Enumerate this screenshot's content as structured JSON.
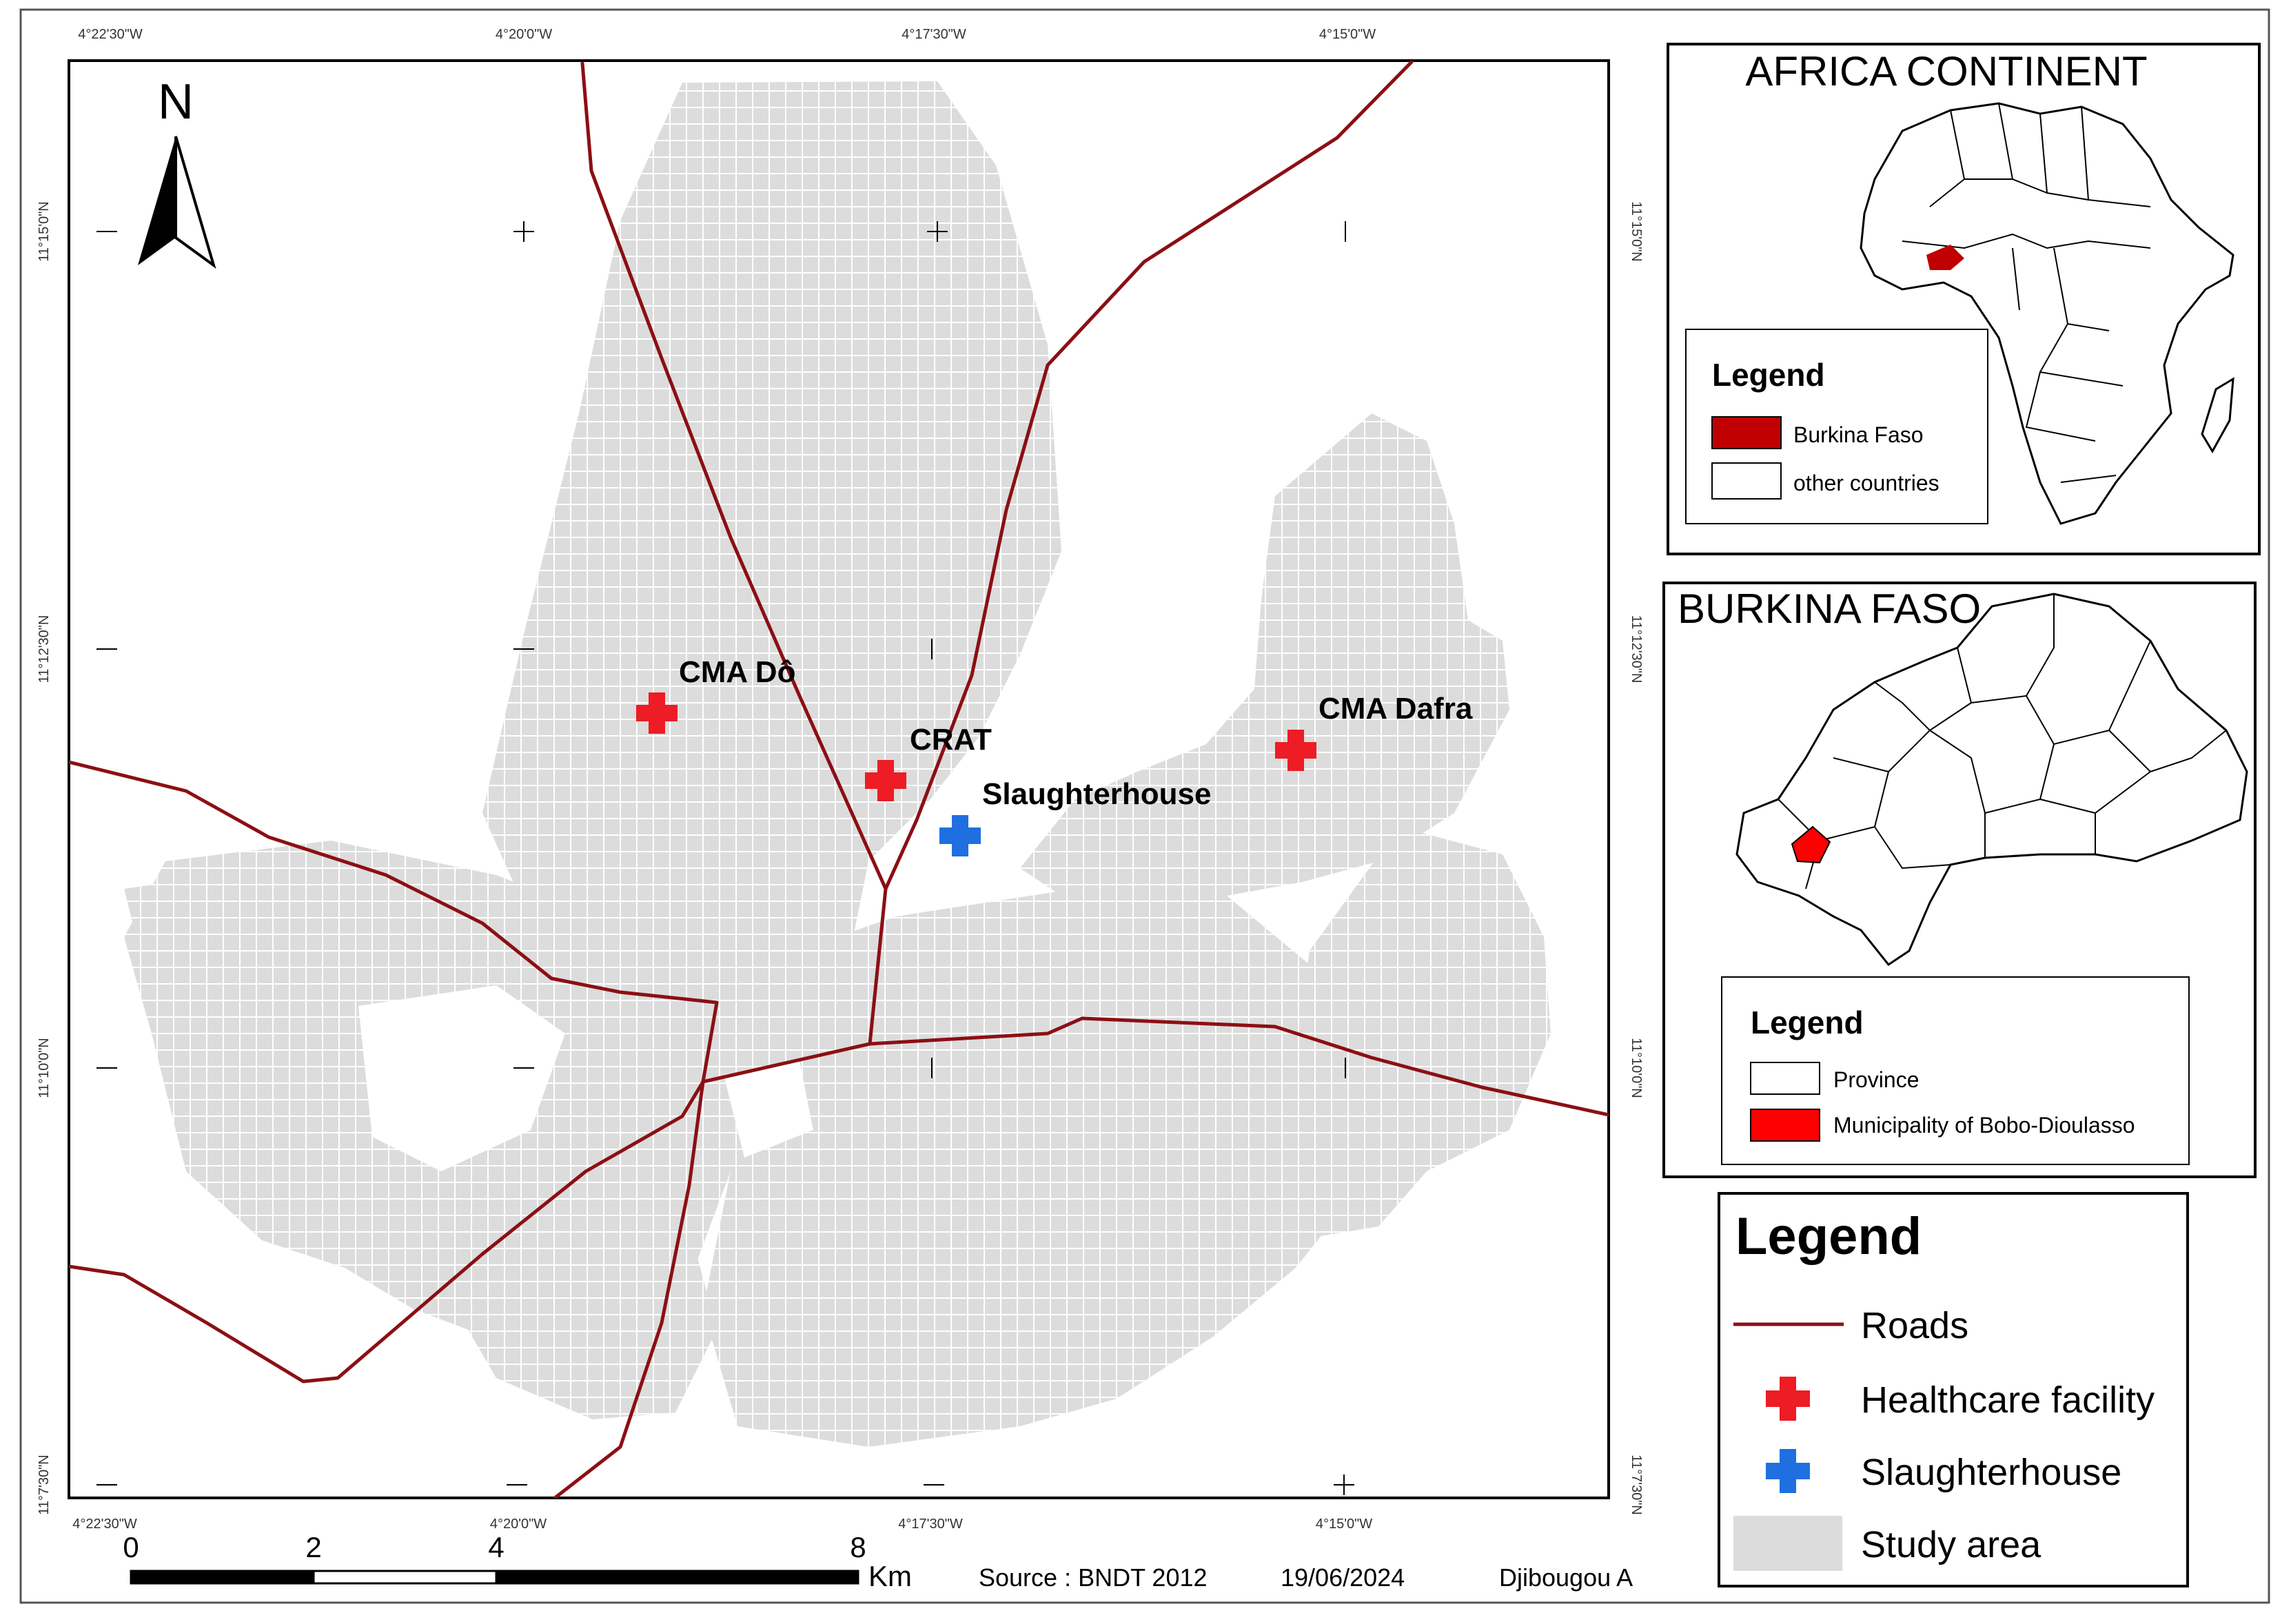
{
  "map": {
    "north_label": "N",
    "graticule": {
      "top": [
        "4°22'30\"W",
        "4°20'0\"W",
        "4°17'30\"W",
        "4°15'0\"W"
      ],
      "bottom": [
        "4°22'30\"W",
        "4°20'0\"W",
        "4°17'30\"W",
        "4°15'0\"W"
      ],
      "left": [
        "11°15'0\"N",
        "11°12'30\"N",
        "11°10'0\"N",
        "11°7'30\"N"
      ],
      "right": [
        "11°15'0\"N",
        "11°12'30\"N",
        "11°10'0\"N",
        "11°7'30\"N"
      ]
    },
    "places": {
      "cma_do": "CMA Dô",
      "crat": "CRAT",
      "slaughterhouse": "Slaughterhouse",
      "cma_dafra": "CMA Dafra"
    },
    "colors": {
      "roads": "#8b0f14",
      "healthcare": "#ee1c24",
      "slaughterhouse": "#1f6fe0",
      "study_area": "#dcdcdc",
      "burkina": "#c00000",
      "municipality": "#ff0000"
    }
  },
  "scale_bar": {
    "ticks": [
      "0",
      "2",
      "4",
      "8"
    ],
    "unit": "Km"
  },
  "footer": {
    "source": "Source : BNDT 2012",
    "date": "19/06/2024",
    "author": "Djibougou A"
  },
  "africa_panel": {
    "title": "AFRICA CONTINENT",
    "legend_title": "Legend",
    "items": [
      "Burkina Faso",
      "other countries"
    ]
  },
  "burkina_panel": {
    "title": "BURKINA FASO",
    "legend_title": "Legend",
    "items": [
      "Province",
      "Municipality of Bobo-Dioulasso"
    ]
  },
  "main_legend": {
    "title": "Legend",
    "items": [
      "Roads",
      "Healthcare facility",
      "Slaughterhouse",
      "Study area"
    ]
  }
}
